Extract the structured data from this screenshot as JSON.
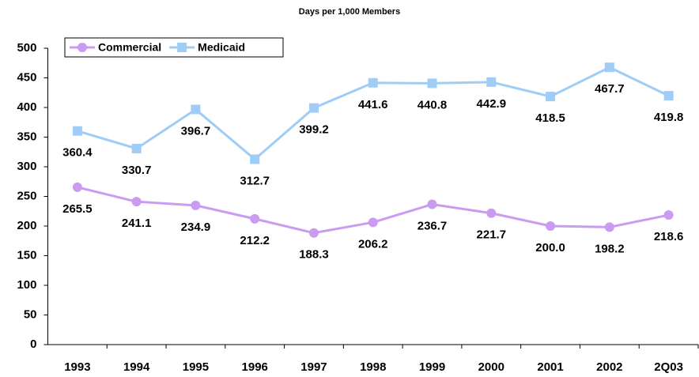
{
  "chart_data": {
    "type": "line",
    "title": "Days per 1,000 Members",
    "categories": [
      "1993",
      "1994",
      "1995",
      "1996",
      "1997",
      "1998",
      "1999",
      "2000",
      "2001",
      "2002",
      "2Q03"
    ],
    "series": [
      {
        "name": "Commercial",
        "color": "#c99cf2",
        "marker": "circle",
        "values": [
          265.5,
          241.1,
          234.9,
          212.2,
          188.3,
          206.2,
          236.7,
          221.7,
          200.0,
          198.2,
          218.6
        ],
        "value_labels": [
          "265.5",
          "241.1",
          "234.9",
          "212.2",
          "188.3",
          "206.2",
          "236.7",
          "221.7",
          "200.0",
          "198.2",
          "218.6"
        ]
      },
      {
        "name": "Medicaid",
        "color": "#9fcdf5",
        "marker": "square",
        "values": [
          360.4,
          330.7,
          396.7,
          312.7,
          399.2,
          441.6,
          440.8,
          442.9,
          418.5,
          467.7,
          419.8
        ],
        "value_labels": [
          "360.4",
          "330.7",
          "396.7",
          "312.7",
          "399.2",
          "441.6",
          "440.8",
          "442.9",
          "418.5",
          "467.7",
          "419.8"
        ]
      }
    ],
    "ylim": [
      0,
      500
    ],
    "yticks": [
      0,
      50,
      100,
      150,
      200,
      250,
      300,
      350,
      400,
      450,
      500
    ],
    "legend": "top-left"
  }
}
